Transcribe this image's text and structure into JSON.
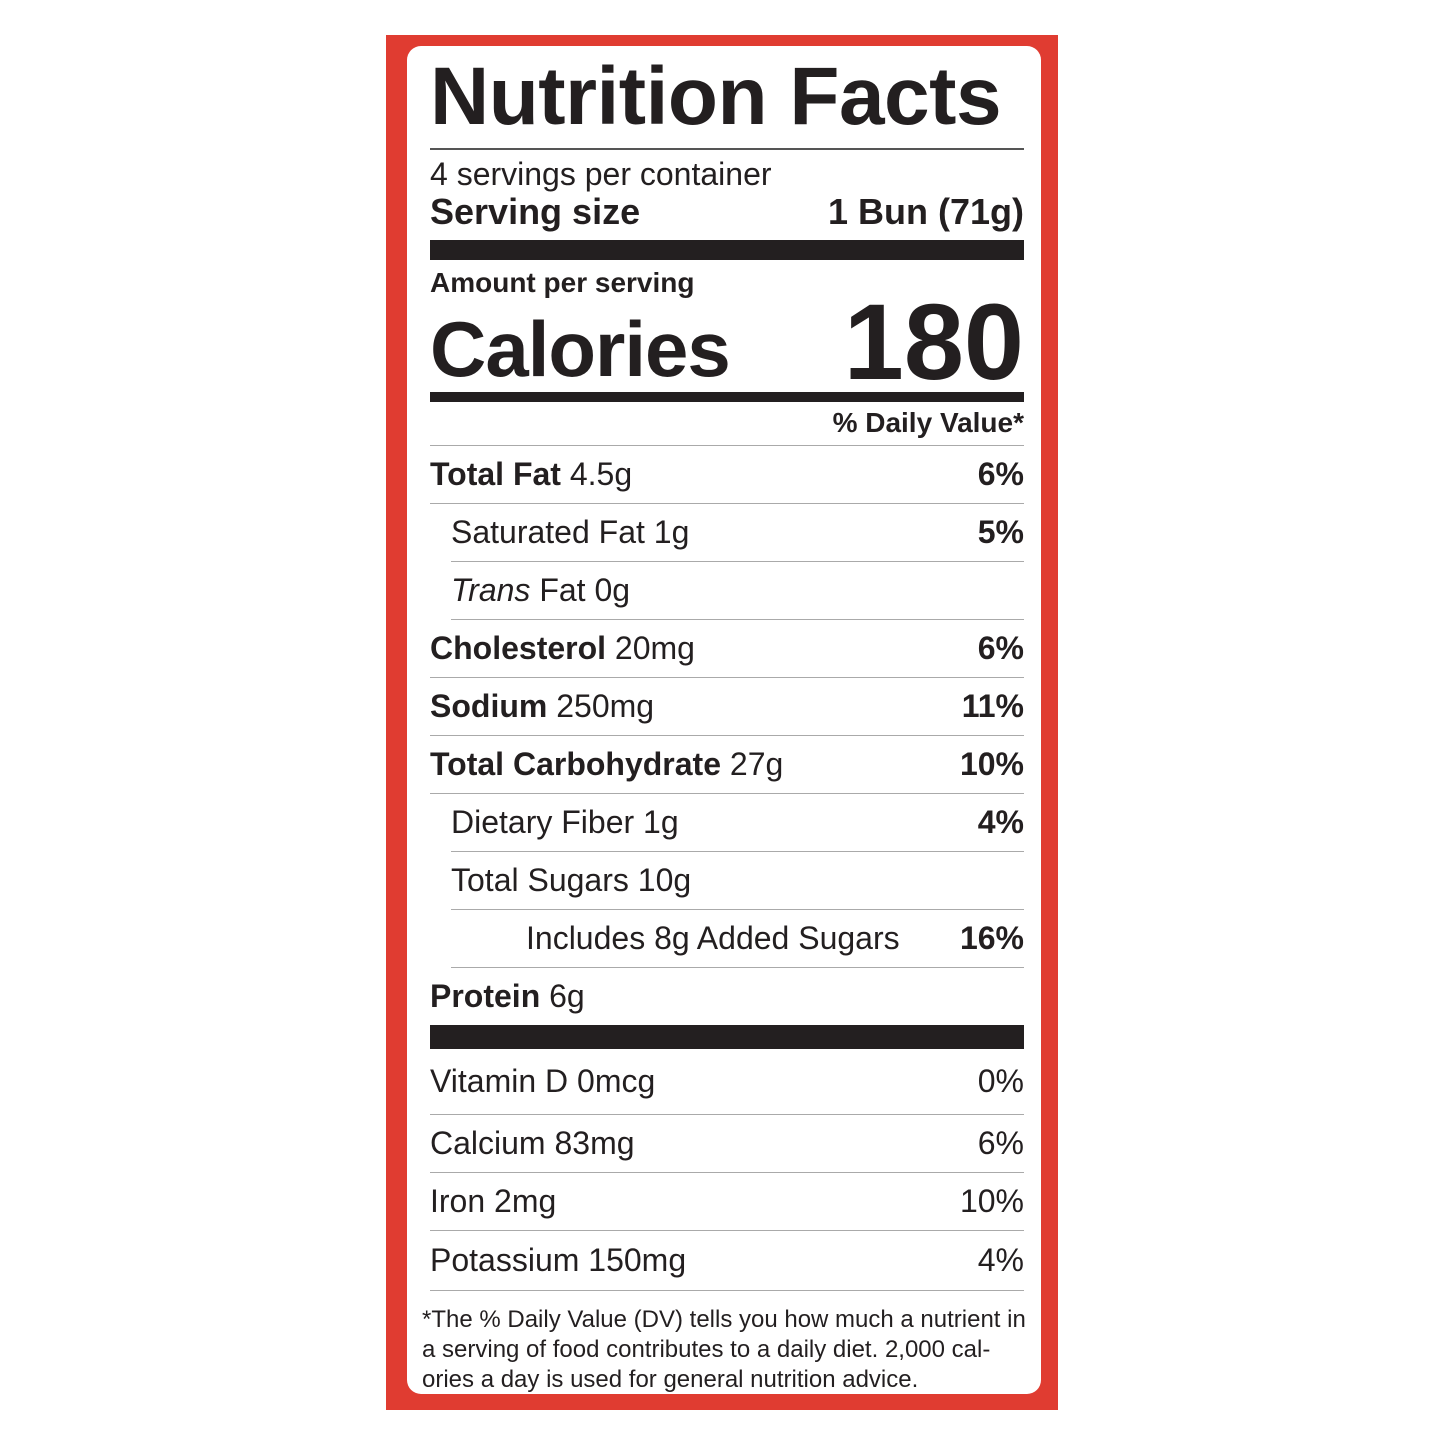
{
  "colors": {
    "frame": "#e03c31",
    "text": "#231f20"
  },
  "title": "Nutrition Facts",
  "servings_per_container": "4 servings per container",
  "serving_size": {
    "label": "Serving size",
    "value": "1 Bun (71g)"
  },
  "amount_per_serving": "Amount per serving",
  "calories": {
    "label": "Calories",
    "value": "180"
  },
  "daily_value_header": "% Daily Value*",
  "nutrients": [
    {
      "name": "Total Fat",
      "amount": "4.5g",
      "dv": "6%"
    },
    {
      "name": "Saturated Fat",
      "amount": "1g",
      "dv": "5%"
    },
    {
      "name": "Trans",
      "name_rest": "Fat",
      "amount": "0g",
      "dv": ""
    },
    {
      "name": "Cholesterol",
      "amount": "20mg",
      "dv": "6%"
    },
    {
      "name": "Sodium",
      "amount": "250mg",
      "dv": "11%"
    },
    {
      "name": "Total Carbohydrate",
      "amount": "27g",
      "dv": "10%"
    },
    {
      "name": "Dietary Fiber",
      "amount": "1g",
      "dv": "4%"
    },
    {
      "name": "Total Sugars",
      "amount": "10g",
      "dv": ""
    },
    {
      "name": "Includes 8g Added Sugars",
      "amount": "",
      "dv": "16%"
    },
    {
      "name": "Protein",
      "amount": "6g",
      "dv": ""
    }
  ],
  "vitamins": [
    {
      "label": "Vitamin D 0mcg",
      "dv": "0%"
    },
    {
      "label": "Calcium 83mg",
      "dv": "6%"
    },
    {
      "label": "Iron 2mg",
      "dv": "10%"
    },
    {
      "label": "Potassium 150mg",
      "dv": "4%"
    }
  ],
  "footnote": "*The % Daily Value (DV) tells you how much a nutrient in a serving of food contributes to a daily diet. 2,000 cal-ories a day is used for general nutrition advice."
}
